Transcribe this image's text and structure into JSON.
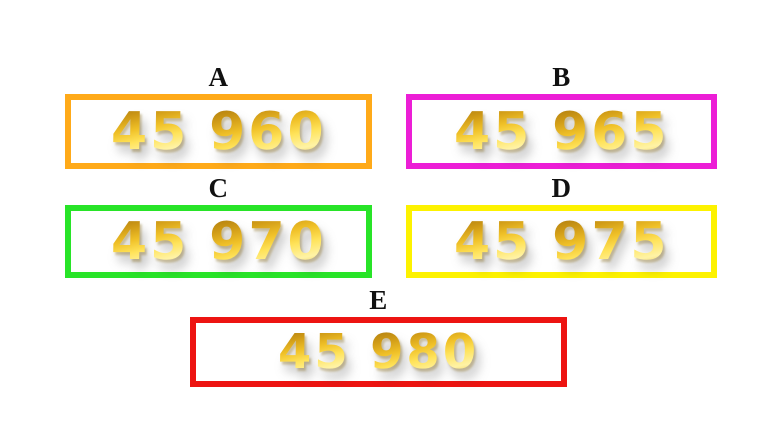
{
  "page": {
    "background_color": "#ffffff",
    "gold_digit_color": "#e3b422"
  },
  "options": [
    {
      "label": "A",
      "number_left": "45",
      "number_right": "960",
      "border_color": "#ffaa19"
    },
    {
      "label": "B",
      "number_left": "45",
      "number_right": "965",
      "border_color": "#ec1ed6"
    },
    {
      "label": "C",
      "number_left": "45",
      "number_right": "970",
      "border_color": "#28e428"
    },
    {
      "label": "D",
      "number_left": "45",
      "number_right": "975",
      "border_color": "#fdf200"
    },
    {
      "label": "E",
      "number_left": "45",
      "number_right": "980",
      "border_color": "#ed1411"
    }
  ]
}
